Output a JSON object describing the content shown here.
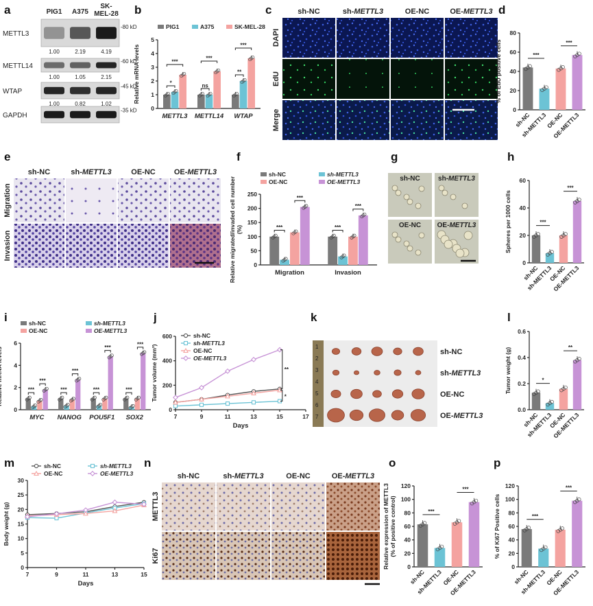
{
  "panels": {
    "a": {
      "label": "a",
      "cell_lines": [
        "PIG1",
        "A375",
        "SK-MEL-28"
      ],
      "blots": [
        {
          "name": "METTL3",
          "mw": "80 kD",
          "values": [
            "1.00",
            "2.19",
            "4.19"
          ]
        },
        {
          "name": "METTL14",
          "mw": "60 kD",
          "values": [
            "1.00",
            "1.05",
            "2.15"
          ]
        },
        {
          "name": "WTAP",
          "mw": "45 kD",
          "values": [
            "1.00",
            "0.82",
            "1.02"
          ]
        },
        {
          "name": "GAPDH",
          "mw": "35 kD",
          "values": []
        }
      ]
    },
    "c": {
      "label": "c",
      "columns": [
        "sh-NC",
        "sh-METTL3",
        "OE-NC",
        "OE-METTL3"
      ],
      "rows": [
        "DAPI",
        "EdU",
        "Merge"
      ]
    },
    "e": {
      "label": "e",
      "columns": [
        "sh-NC",
        "sh-METTL3",
        "OE-NC",
        "OE-METTL3"
      ],
      "rows": [
        "Migration",
        "Invasion"
      ]
    },
    "g": {
      "label": "g",
      "tiles": [
        "sh-NC",
        "sh-METTL3",
        "OE-NC",
        "OE-METTL3"
      ]
    },
    "k": {
      "label": "k",
      "rows": [
        "sh-NC",
        "sh-METTL3",
        "OE-NC",
        "OE-METTL3"
      ],
      "ruler": [
        "1",
        "2",
        "3",
        "4",
        "5",
        "6",
        "7"
      ]
    },
    "n": {
      "label": "n",
      "columns": [
        "sh-NC",
        "sh-METTL3",
        "OE-NC",
        "OE-METTL3"
      ],
      "rows": [
        "METTL3",
        "Ki67"
      ]
    }
  },
  "chart_data": [
    {
      "panel": "b",
      "type": "bar",
      "categories": [
        "METTL3",
        "METTL14",
        "WTAP"
      ],
      "series": [
        {
          "name": "PIG1",
          "values": [
            1.0,
            1.0,
            1.0
          ]
        },
        {
          "name": "A375",
          "values": [
            1.2,
            1.0,
            2.0
          ]
        },
        {
          "name": "SK-MEL-28",
          "values": [
            2.45,
            2.7,
            3.65
          ]
        }
      ],
      "ylabel": "Relative mRNA levels",
      "ylim": [
        0,
        5
      ],
      "yticks": [
        "0",
        "1",
        "2",
        "3",
        "4",
        "5"
      ],
      "significance": [
        "*",
        "***",
        "ns",
        "***",
        "**",
        "***"
      ],
      "colors": [
        "#7a7a7a",
        "#6cc3d5",
        "#f4a3a0"
      ],
      "legend": "top"
    },
    {
      "panel": "d",
      "type": "bar",
      "categories": [
        "sh-NC",
        "sh-METTL3",
        "OE-NC",
        "OE-METTL3"
      ],
      "values": [
        44,
        22,
        43,
        57
      ],
      "ylabel": "% of EdU positive cells",
      "ylim": [
        0,
        80
      ],
      "yticks": [
        "0",
        "20",
        "40",
        "60",
        "80"
      ],
      "significance": [
        "***",
        "***"
      ],
      "colors": [
        "#7a7a7a",
        "#6cc3d5",
        "#f4a3a0",
        "#c793d6"
      ]
    },
    {
      "panel": "f",
      "type": "bar",
      "categories": [
        "Migration",
        "Invasion"
      ],
      "series": [
        {
          "name": "sh-NC",
          "values": [
            100,
            100
          ]
        },
        {
          "name": "sh-METTL3",
          "values": [
            18,
            30
          ]
        },
        {
          "name": "OE-NC",
          "values": [
            115,
            100
          ]
        },
        {
          "name": "OE-METTL3",
          "values": [
            205,
            175
          ]
        }
      ],
      "ylabel": "Relative migrated/invaded cell number (%)",
      "ylim": [
        0,
        250
      ],
      "yticks": [
        "0",
        "50",
        "100",
        "150",
        "200",
        "250"
      ],
      "significance": [
        "***",
        "***",
        "***",
        "***"
      ],
      "colors": [
        "#7a7a7a",
        "#6cc3d5",
        "#f4a3a0",
        "#c793d6"
      ],
      "legend": "top"
    },
    {
      "panel": "h",
      "type": "bar",
      "categories": [
        "sh-NC",
        "sh-METTL3",
        "OE-NC",
        "OE-METTL3"
      ],
      "values": [
        20,
        7,
        20,
        45
      ],
      "ylabel": "Spheres per 1000 cells",
      "ylim": [
        0,
        60
      ],
      "yticks": [
        "0",
        "20",
        "40",
        "60"
      ],
      "significance": [
        "***",
        "***"
      ],
      "colors": [
        "#7a7a7a",
        "#6cc3d5",
        "#f4a3a0",
        "#c793d6"
      ]
    },
    {
      "panel": "i",
      "type": "bar",
      "categories": [
        "MYC",
        "NANOG",
        "POU5F1",
        "SOX2"
      ],
      "series": [
        {
          "name": "sh-NC",
          "values": [
            1.0,
            1.0,
            1.0,
            1.0
          ]
        },
        {
          "name": "sh-METTL3",
          "values": [
            0.3,
            0.35,
            0.35,
            0.25
          ]
        },
        {
          "name": "OE-NC",
          "values": [
            0.8,
            0.9,
            1.0,
            1.0
          ]
        },
        {
          "name": "OE-METTL3",
          "values": [
            1.8,
            2.7,
            4.8,
            5.1
          ]
        }
      ],
      "ylabel": "Relative mRNA levels",
      "ylim": [
        0,
        6
      ],
      "yticks": [
        "0",
        "2",
        "4",
        "6"
      ],
      "significance": [
        "***",
        "***",
        "***",
        "***",
        "***",
        "***",
        "***",
        "***"
      ],
      "colors": [
        "#7a7a7a",
        "#6cc3d5",
        "#f4a3a0",
        "#c793d6"
      ],
      "legend": "top"
    },
    {
      "panel": "j",
      "type": "line",
      "x": [
        7,
        9,
        11,
        13,
        15
      ],
      "series": [
        {
          "name": "sh-NC",
          "values": [
            60,
            85,
            120,
            150,
            170
          ]
        },
        {
          "name": "sh-METTL3",
          "values": [
            30,
            40,
            50,
            60,
            70
          ]
        },
        {
          "name": "OE-NC",
          "values": [
            60,
            85,
            110,
            135,
            160
          ]
        },
        {
          "name": "OE-METTL3",
          "values": [
            100,
            180,
            315,
            410,
            490
          ]
        }
      ],
      "xlabel": "Days",
      "ylabel": "Tumor volume (mm³)",
      "xlim": [
        7,
        17
      ],
      "ylim": [
        0,
        600
      ],
      "xticks": [
        "7",
        "9",
        "11",
        "13",
        "15",
        "17"
      ],
      "yticks": [
        "0",
        "200",
        "400",
        "600"
      ],
      "significance": [
        "**",
        "*"
      ],
      "colors": [
        "#555555",
        "#6cc3d5",
        "#f4a3a0",
        "#c793d6"
      ],
      "legend": "top-left"
    },
    {
      "panel": "l",
      "type": "bar",
      "categories": [
        "sh-NC",
        "sh-METTL3",
        "OE-NC",
        "OE-METTL3"
      ],
      "values": [
        0.13,
        0.05,
        0.16,
        0.38
      ],
      "ylabel": "Tumor weight (g)",
      "ylim": [
        0,
        0.6
      ],
      "yticks": [
        "0.0",
        "0.2",
        "0.4",
        "0.6"
      ],
      "significance": [
        "*",
        "**"
      ],
      "colors": [
        "#7a7a7a",
        "#6cc3d5",
        "#f4a3a0",
        "#c793d6"
      ]
    },
    {
      "panel": "m",
      "type": "line",
      "x": [
        7,
        9,
        11,
        13,
        15
      ],
      "series": [
        {
          "name": "sh-NC",
          "values": [
            18.2,
            18.6,
            19.2,
            21.0,
            22.5
          ]
        },
        {
          "name": "sh-METTL3",
          "values": [
            17.2,
            17.0,
            18.8,
            20.5,
            22.0
          ]
        },
        {
          "name": "OE-NC",
          "values": [
            17.8,
            18.2,
            18.6,
            19.5,
            21.5
          ]
        },
        {
          "name": "OE-METTL3",
          "values": [
            17.5,
            18.5,
            19.8,
            22.5,
            21.8
          ]
        }
      ],
      "xlabel": "Days",
      "ylabel": "Body weight (g)",
      "xlim": [
        7,
        15
      ],
      "ylim": [
        0,
        30
      ],
      "xticks": [
        "7",
        "9",
        "11",
        "13",
        "15"
      ],
      "yticks": [
        "0",
        "5",
        "10",
        "15",
        "20",
        "25",
        "30"
      ],
      "colors": [
        "#555555",
        "#6cc3d5",
        "#f4a3a0",
        "#c793d6"
      ],
      "legend": "top"
    },
    {
      "panel": "o",
      "type": "bar",
      "categories": [
        "sh-NC",
        "sh-METTL3",
        "OE-NC",
        "OE-METTL3"
      ],
      "values": [
        63,
        28,
        66,
        96
      ],
      "ylabel": "Relative expression of METTL3 (% of positive control)",
      "ylim": [
        0,
        120
      ],
      "yticks": [
        "0",
        "20",
        "40",
        "60",
        "80",
        "100",
        "120"
      ],
      "significance": [
        "***",
        "***"
      ],
      "colors": [
        "#7a7a7a",
        "#6cc3d5",
        "#f4a3a0",
        "#c793d6"
      ]
    },
    {
      "panel": "p",
      "type": "bar",
      "categories": [
        "sh-NC",
        "sh-METTL3",
        "OE-NC",
        "OE-METTL3"
      ],
      "values": [
        56,
        27,
        55,
        98
      ],
      "ylabel": "% of Ki67 Positive cells",
      "ylim": [
        0,
        120
      ],
      "yticks": [
        "0",
        "20",
        "40",
        "60",
        "80",
        "100",
        "120"
      ],
      "significance": [
        "***",
        "***"
      ],
      "colors": [
        "#7a7a7a",
        "#6cc3d5",
        "#f4a3a0",
        "#c793d6"
      ]
    }
  ]
}
